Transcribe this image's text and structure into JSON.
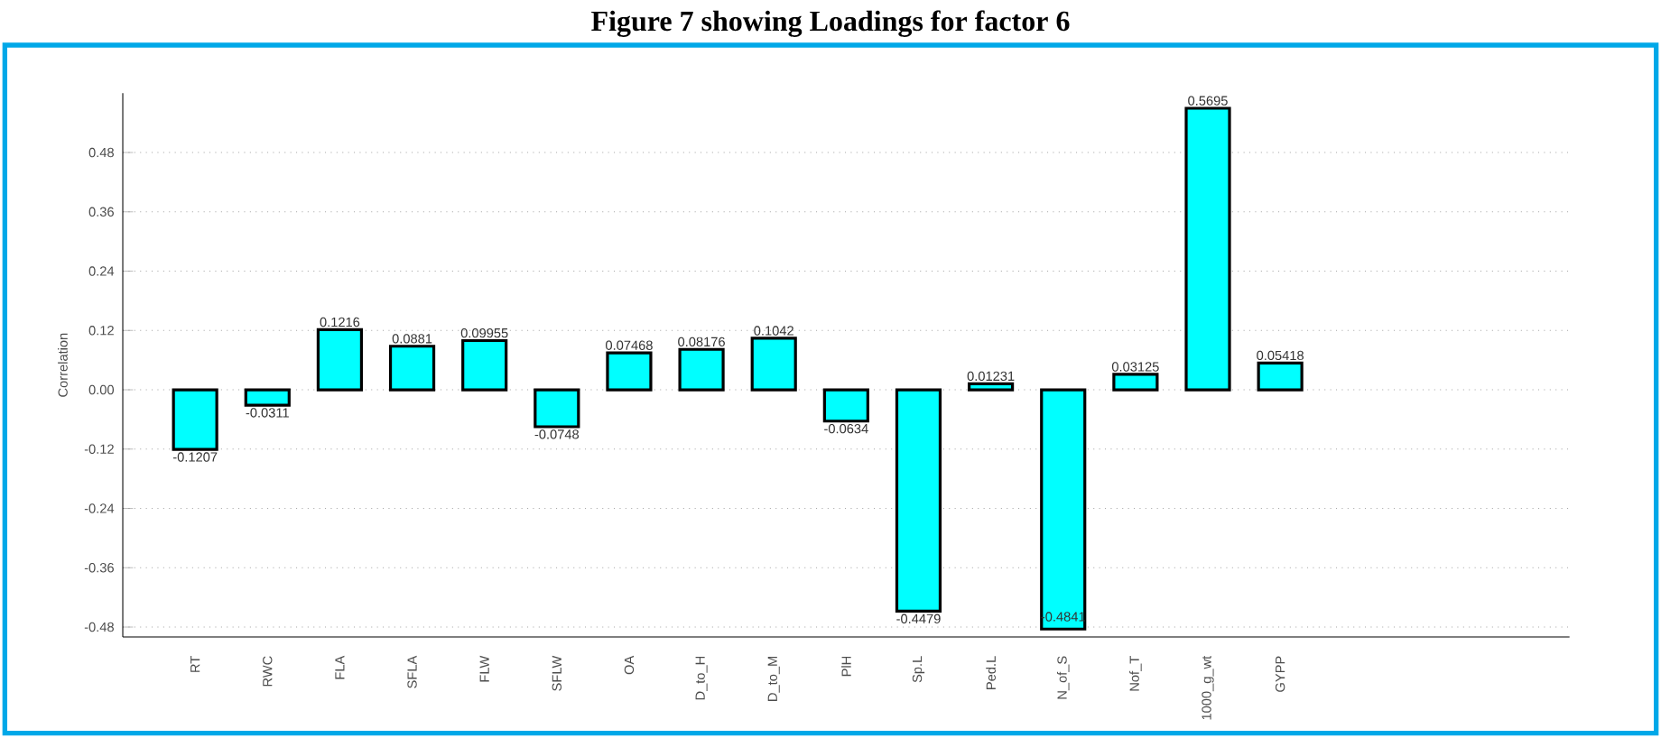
{
  "chart_data": {
    "type": "bar",
    "title": "Figure 7 showing Loadings for factor 6",
    "ylabel": "Correlation",
    "categories": [
      "RT",
      "RWC",
      "FLA",
      "SFLA",
      "FLW",
      "SFLW",
      "OA",
      "D_to_H",
      "D_to_M",
      "PlH",
      "Sp.L",
      "Ped.L",
      "N_of_S",
      "Nof_T",
      "1000_g_wt",
      "GYPP"
    ],
    "values": [
      -0.1207,
      -0.0311,
      0.1216,
      0.0881,
      0.09955,
      -0.0748,
      0.07468,
      0.08176,
      0.1042,
      -0.0634,
      -0.4479,
      0.01231,
      -0.4841,
      0.03125,
      0.5695,
      0.05418
    ],
    "color": "#00ffff",
    "data_labels": true,
    "grid": "y",
    "ylim": [
      -0.5,
      0.6
    ],
    "yticks": [
      {
        "value": -0.48,
        "label": "-0.48"
      },
      {
        "value": -0.36,
        "label": "-0.36"
      },
      {
        "value": -0.24,
        "label": "-0.24"
      },
      {
        "value": -0.12,
        "label": "-0.12"
      },
      {
        "value": 0,
        "label": "0.00"
      },
      {
        "value": 0.12,
        "label": "0.12"
      },
      {
        "value": 0.24,
        "label": "0.24"
      },
      {
        "value": 0.36,
        "label": "0.36"
      },
      {
        "value": 0.48,
        "label": "0.48"
      }
    ]
  }
}
